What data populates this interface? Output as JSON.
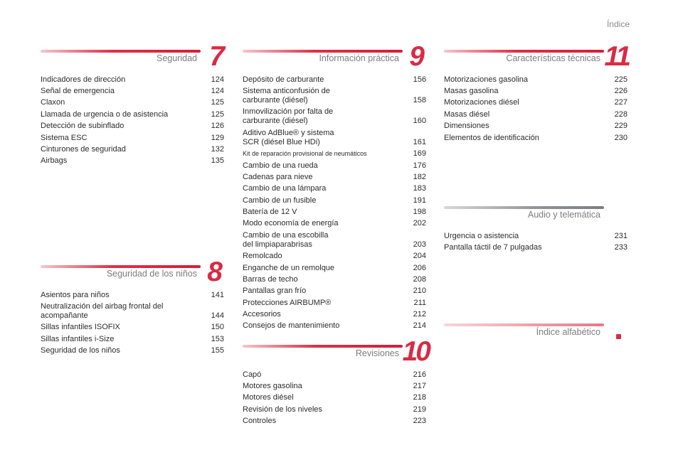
{
  "header": {
    "title": "Índice"
  },
  "sections": {
    "s7": {
      "number": "7",
      "title": "Seguridad",
      "entries": [
        {
          "label": "Indicadores de dirección",
          "page": "124"
        },
        {
          "label": "Señal de emergencia",
          "page": "124"
        },
        {
          "label": "Claxon",
          "page": "125"
        },
        {
          "label": "Llamada de urgencia o de asistencia",
          "page": "125"
        },
        {
          "label": "Detección de subinflado",
          "page": "126"
        },
        {
          "label": "Sistema ESC",
          "page": "129"
        },
        {
          "label": "Cinturones de seguridad",
          "page": "132"
        },
        {
          "label": "Airbags",
          "page": "135"
        }
      ]
    },
    "s8": {
      "number": "8",
      "title": "Seguridad de los niños",
      "entries": [
        {
          "label": "Asientos para niños",
          "page": "141"
        },
        {
          "label": "Neutralización del airbag frontal del\nacompañante",
          "page": "144"
        },
        {
          "label": "Sillas infantiles ISOFIX",
          "page": "150"
        },
        {
          "label": "Sillas infantiles i-Size",
          "page": "153"
        },
        {
          "label": "Seguridad de los niños",
          "page": "155"
        }
      ]
    },
    "s9": {
      "number": "9",
      "title": "Información práctica",
      "entries": [
        {
          "label": "Depósito de carburante",
          "page": "156"
        },
        {
          "label": "Sistema anticonfusión de\ncarburante (diésel)",
          "page": "158"
        },
        {
          "label": "Inmovilización por falta de\ncarburante (diésel)",
          "page": "160"
        },
        {
          "label": "Aditivo AdBlue® y sistema\nSCR (diésel Blue HDi)",
          "page": "161"
        },
        {
          "label": "Kit de reparación provisional de neumáticos",
          "page": "169",
          "small": true
        },
        {
          "label": "Cambio de una rueda",
          "page": "176"
        },
        {
          "label": "Cadenas para nieve",
          "page": "182"
        },
        {
          "label": "Cambio de una lámpara",
          "page": "183"
        },
        {
          "label": "Cambio de un fusible",
          "page": "191"
        },
        {
          "label": "Batería de 12 V",
          "page": "198"
        },
        {
          "label": "Modo economía de energía",
          "page": "202"
        },
        {
          "label": "Cambio de una escobilla\ndel limpiaparabrisas",
          "page": "203"
        },
        {
          "label": "Remolcado",
          "page": "204"
        },
        {
          "label": "Enganche de un remolque",
          "page": "206"
        },
        {
          "label": "Barras de techo",
          "page": "208"
        },
        {
          "label": "Pantallas gran frío",
          "page": "210"
        },
        {
          "label": "Protecciones AIRBUMP®",
          "page": "211"
        },
        {
          "label": "Accesorios",
          "page": "212"
        },
        {
          "label": "Consejos de mantenimiento",
          "page": "214"
        }
      ]
    },
    "s10": {
      "number": "10",
      "title": "Revisiones",
      "entries": [
        {
          "label": "Capó",
          "page": "216"
        },
        {
          "label": "Motores gasolina",
          "page": "217"
        },
        {
          "label": "Motores diésel",
          "page": "218"
        },
        {
          "label": "Revisión de los niveles",
          "page": "219"
        },
        {
          "label": "Controles",
          "page": "223"
        }
      ]
    },
    "s11": {
      "number": "11",
      "title": "Características técnicas",
      "entries": [
        {
          "label": "Motorizaciones gasolina",
          "page": "225"
        },
        {
          "label": "Masas gasolina",
          "page": "226"
        },
        {
          "label": "Motorizaciones diésel",
          "page": "227"
        },
        {
          "label": "Masas diésel",
          "page": "228"
        },
        {
          "label": "Dimensiones",
          "page": "229"
        },
        {
          "label": "Elementos de identificación",
          "page": "230"
        }
      ]
    },
    "audio": {
      "title": "Audio y telemática",
      "entries": [
        {
          "label": "Urgencia o asistencia",
          "page": "231"
        },
        {
          "label": "Pantalla táctil de 7 pulgadas",
          "page": "233"
        }
      ]
    },
    "index": {
      "title": "Índice alfabético"
    }
  },
  "colors": {
    "accent": "#d92b44",
    "grey_bar": "#8f9196"
  }
}
